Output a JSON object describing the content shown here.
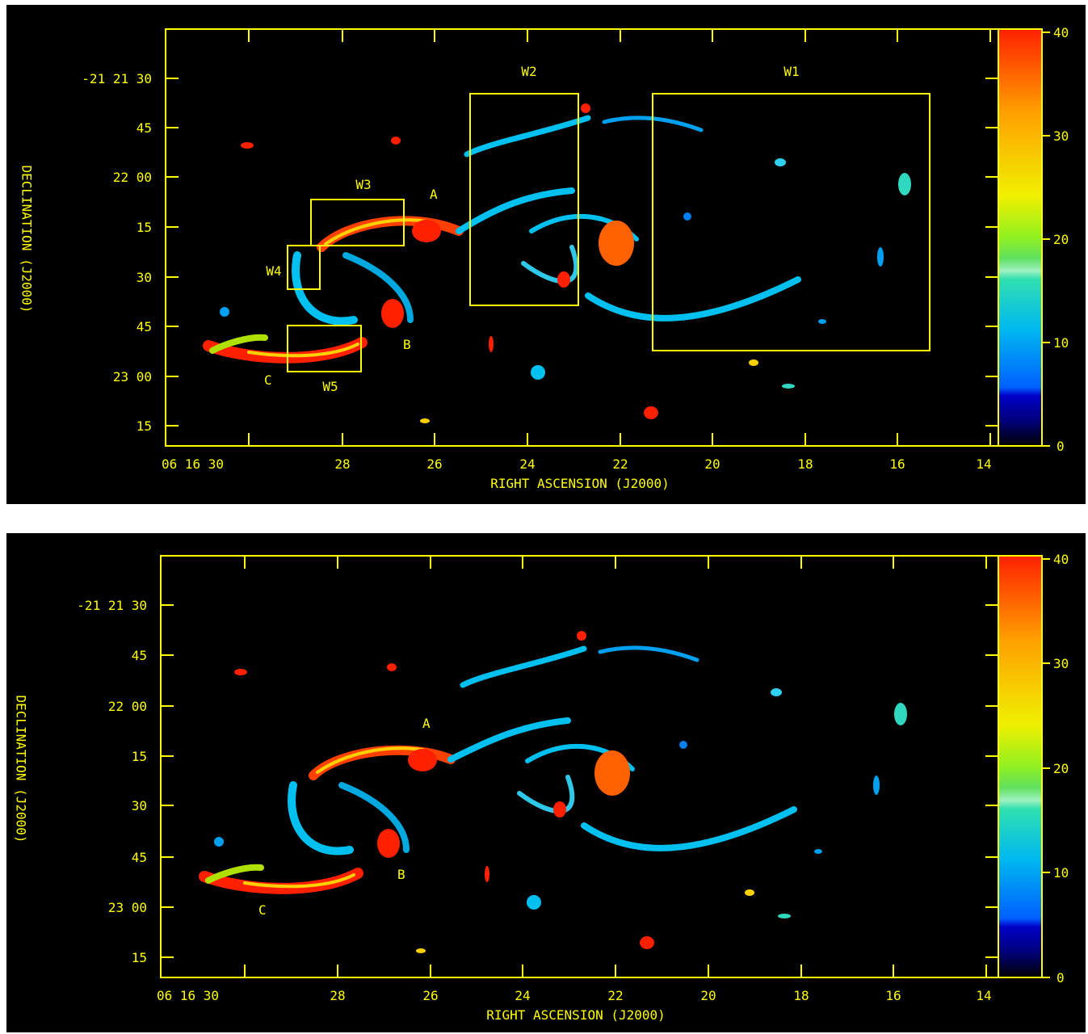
{
  "colors": {
    "axes": "#ffff00",
    "background": "#000000"
  },
  "colorbar": {
    "ticks": [
      "40",
      "30",
      "20",
      "10",
      "0"
    ],
    "values": [
      40,
      30,
      20,
      10,
      0
    ],
    "range": [
      0,
      40
    ]
  },
  "chart_data": [
    {
      "type": "heatmap",
      "xlabel": "RIGHT ASCENSION (J2000)",
      "ylabel": "DECLINATION (J2000)",
      "x_ticks": [
        "06 16 30",
        "28",
        "26",
        "24",
        "22",
        "20",
        "18",
        "16",
        "14"
      ],
      "y_ticks": [
        "-21 21 30",
        "45",
        "22 00",
        "15",
        "30",
        "45",
        "23 00",
        "15"
      ],
      "source_labels": [
        "A",
        "B",
        "C"
      ],
      "regions": [
        "W1",
        "W2",
        "W3",
        "W4",
        "W5"
      ],
      "colorbar": {
        "range": [
          0,
          40
        ],
        "ticks": [
          40,
          30,
          20,
          10,
          0
        ]
      }
    },
    {
      "type": "heatmap",
      "xlabel": "RIGHT ASCENSION (J2000)",
      "ylabel": "DECLINATION (J2000)",
      "x_ticks": [
        "06 16 30",
        "28",
        "26",
        "24",
        "22",
        "20",
        "18",
        "16",
        "14"
      ],
      "y_ticks": [
        "-21 21 30",
        "45",
        "22 00",
        "15",
        "30",
        "45",
        "23 00",
        "15"
      ],
      "source_labels": [
        "A",
        "B",
        "C"
      ],
      "colorbar": {
        "range": [
          0,
          40
        ],
        "ticks": [
          40,
          30,
          20,
          10,
          0
        ]
      }
    }
  ]
}
